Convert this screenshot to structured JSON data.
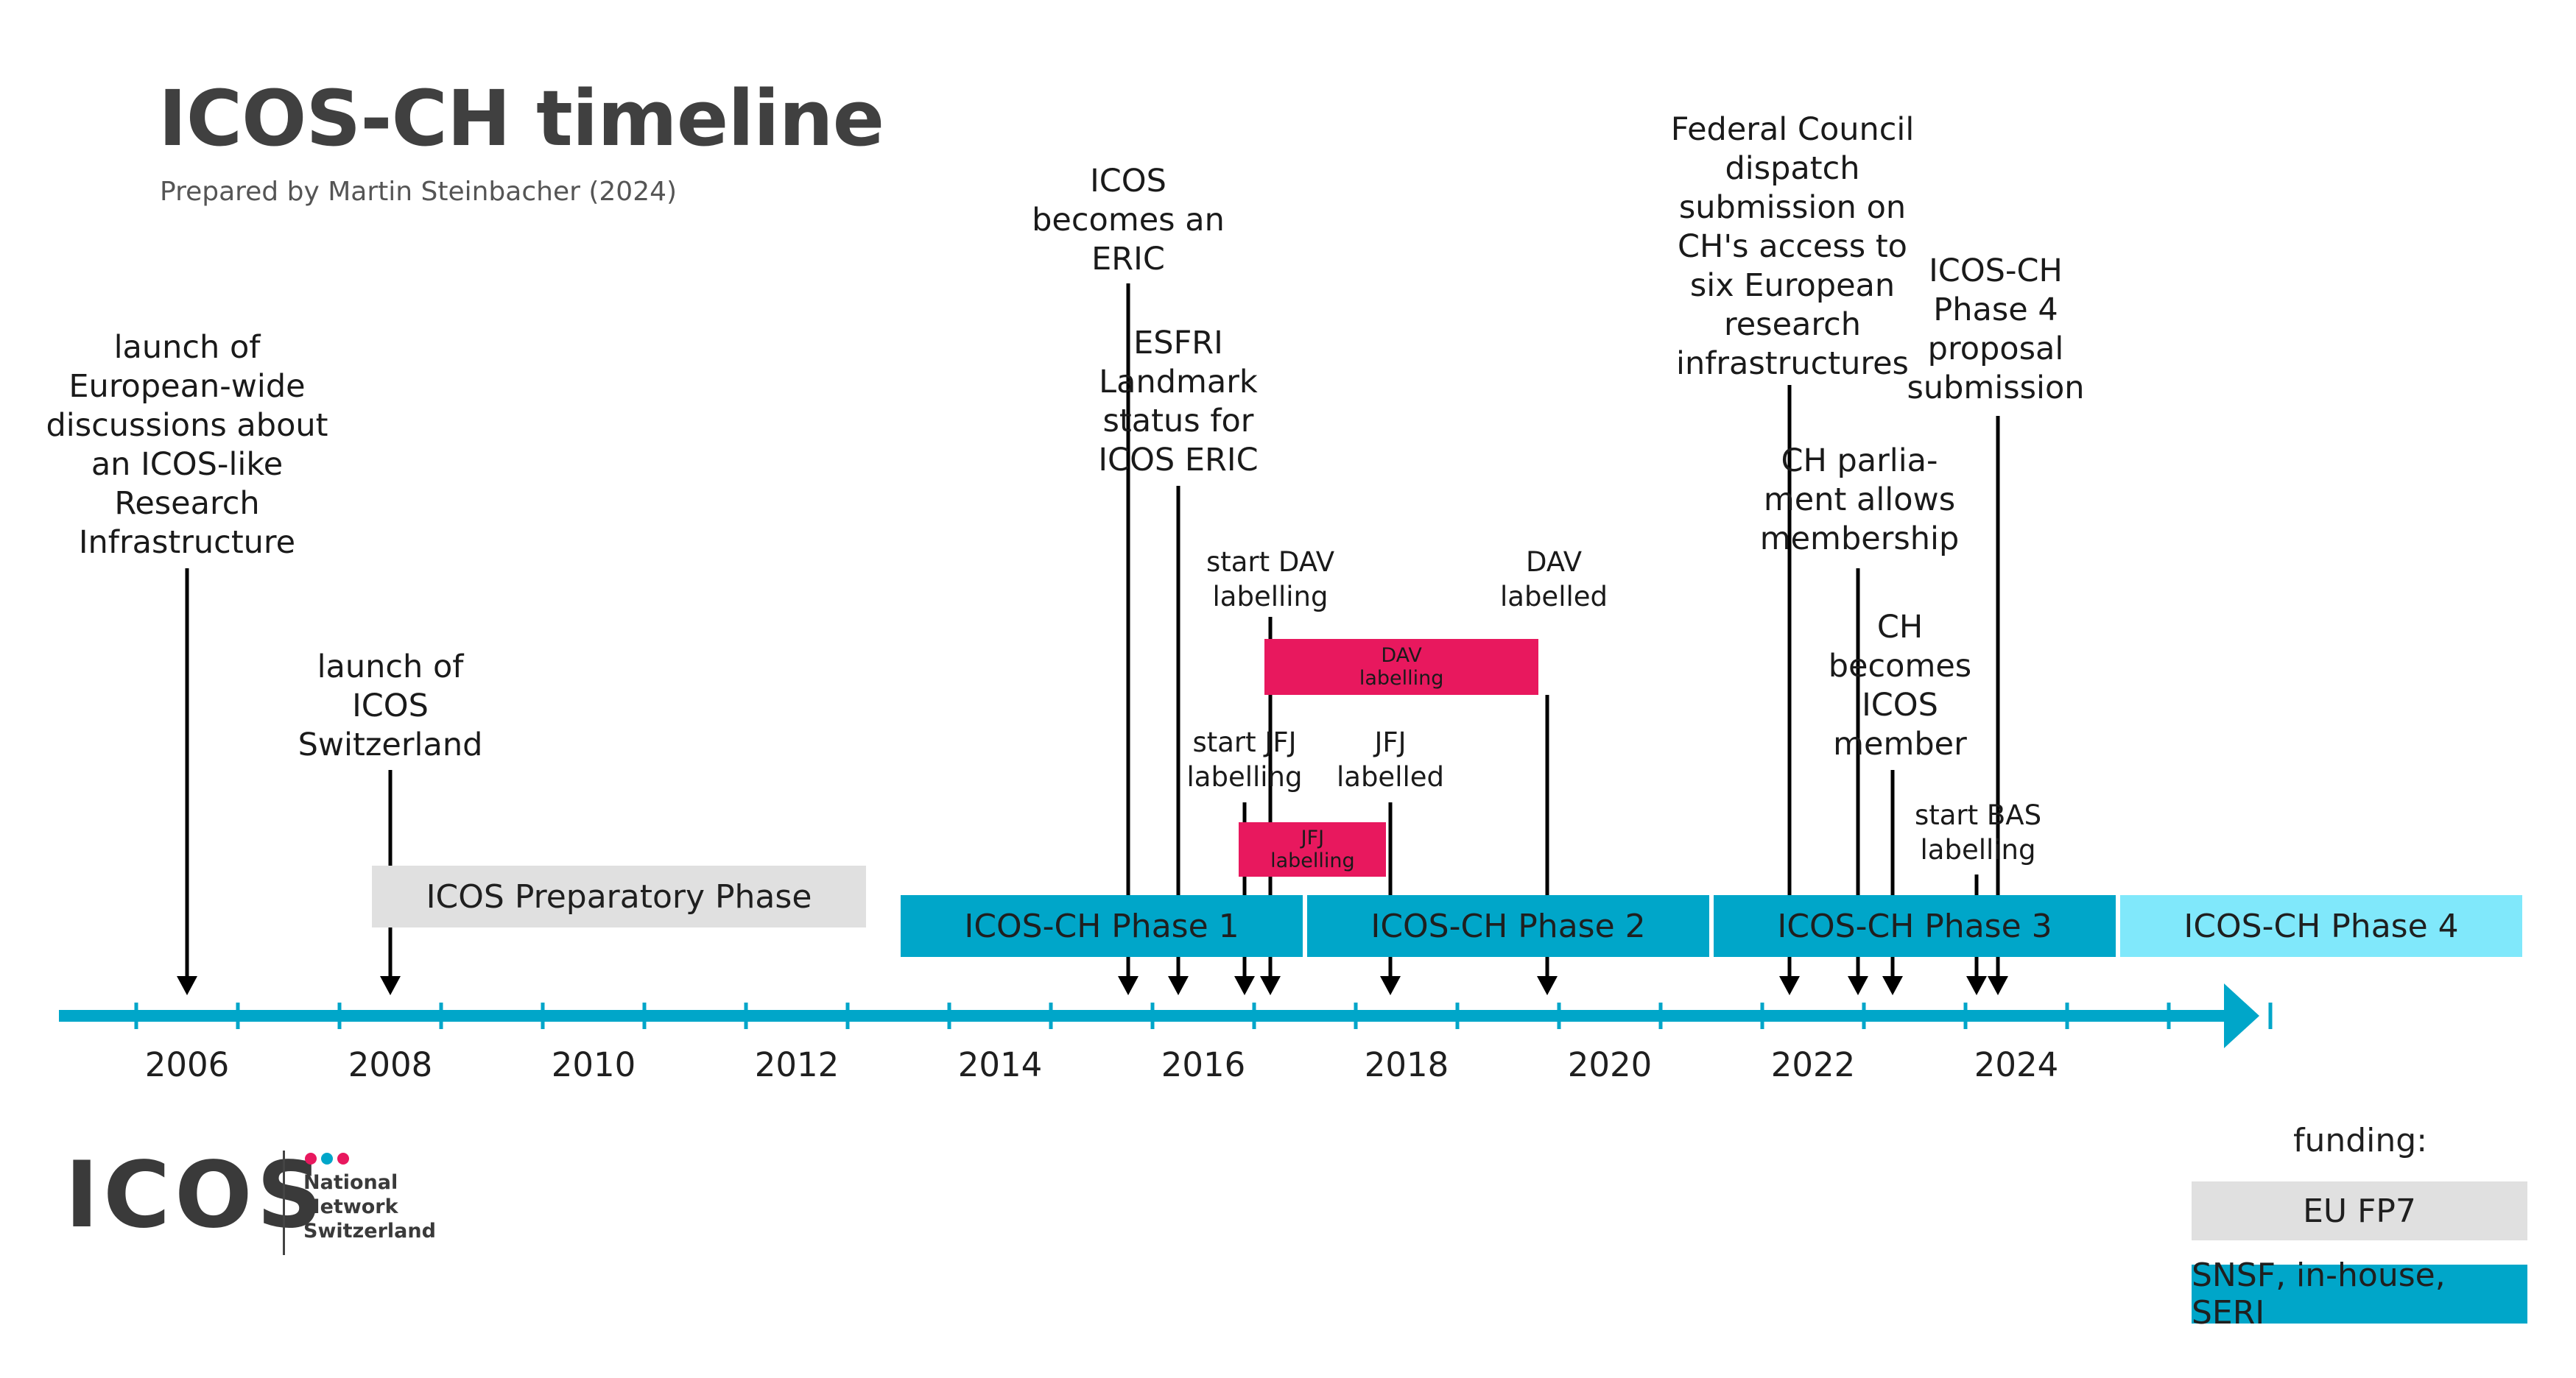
{
  "header": {
    "title": "ICOS-CH timeline",
    "subtitle": "Prepared by Martin Steinbacher (2024)"
  },
  "colors": {
    "axis": "#00a6c9",
    "phase_dark": "#00a6c9",
    "phase_light": "#80e8fb",
    "preparatory": "#e0e0e0",
    "labelling": "#e8185e",
    "arrow": "#000000"
  },
  "axis": {
    "years": [
      "2006",
      "2008",
      "2010",
      "2012",
      "2014",
      "2016",
      "2018",
      "2020",
      "2022",
      "2024"
    ]
  },
  "phases": [
    {
      "label": "ICOS Preparatory Phase",
      "start": 2007.8,
      "end": 2012.7,
      "style": "preparatory"
    },
    {
      "label": "ICOS-CH Phase 1",
      "start": 2013.0,
      "end": 2017.0,
      "style": "dark"
    },
    {
      "label": "ICOS-CH Phase 2",
      "start": 2017.0,
      "end": 2021.0,
      "style": "dark"
    },
    {
      "label": "ICOS-CH Phase 3",
      "start": 2021.0,
      "end": 2025.0,
      "style": "dark"
    },
    {
      "label": "ICOS-CH Phase 4",
      "start": 2025.0,
      "end": 2029.0,
      "style": "light"
    }
  ],
  "labelling_bars": [
    {
      "label": "DAV\nlabelling",
      "start": 2016.6,
      "end": 2019.3
    },
    {
      "label": "JFJ\nlabelling",
      "start": 2016.35,
      "end": 2017.8
    }
  ],
  "events": [
    {
      "label": "launch of\nEuropean-wide\ndiscussions about\nan ICOS-like\nResearch\nInfrastructure",
      "year": 2006.0
    },
    {
      "label": "launch of\nICOS\nSwitzerland",
      "year": 2008.0
    },
    {
      "label": "ICOS\nbecomes an\nERIC",
      "year": 2015.2
    },
    {
      "label": "ESFRI\nLandmark\nstatus for\nICOS ERIC",
      "year": 2015.7
    },
    {
      "label": "start DAV\nlabelling",
      "year": 2016.6
    },
    {
      "label": "DAV\nlabelled",
      "year": 2019.3
    },
    {
      "label": "start JFJ\nlabelling",
      "year": 2016.35
    },
    {
      "label": "JFJ\nlabelled",
      "year": 2017.8
    },
    {
      "label": "Federal Council\ndispatch\nsubmission on\nCH's access to\nsix European\nresearch\ninfrastructures",
      "year": 2021.7
    },
    {
      "label": "ICOS-CH\nPhase 4\nproposal\nsubmission",
      "year": 2023.7
    },
    {
      "label": "CH parlia-\nment allows\nmembership",
      "year": 2022.35
    },
    {
      "label": "CH\nbecomes\nICOS\nmember",
      "year": 2022.7
    },
    {
      "label": "start BAS\nlabelling",
      "year": 2023.5
    }
  ],
  "legend": {
    "title": "funding:",
    "items": [
      {
        "label": "EU FP7",
        "color": "#e0e0e0"
      },
      {
        "label": "SNSF, in-house, SERI",
        "color": "#00a6c9"
      }
    ]
  },
  "logo": {
    "name": "ICOS",
    "subtitle": "National\nNetwork\nSwitzerland",
    "dot_colors": [
      "#e8185e",
      "#00a6c9",
      "#e8185e"
    ]
  }
}
